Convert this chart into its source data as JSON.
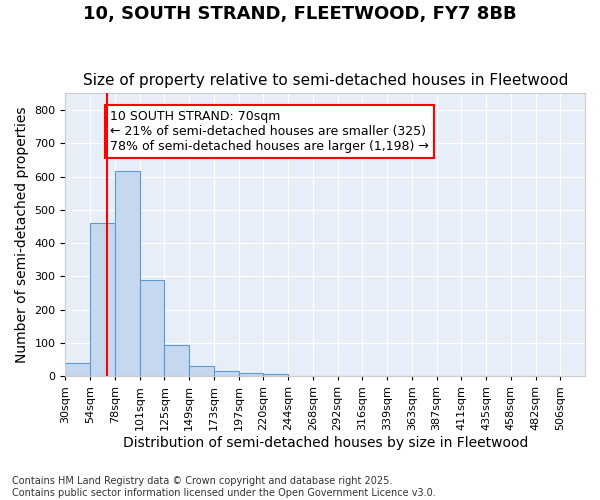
{
  "title": "10, SOUTH STRAND, FLEETWOOD, FY7 8BB",
  "subtitle": "Size of property relative to semi-detached houses in Fleetwood",
  "xlabel": "Distribution of semi-detached houses by size in Fleetwood",
  "ylabel": "Number of semi-detached properties",
  "bar_color": "#c5d8f0",
  "bar_edge_color": "#5b9bd5",
  "background_color": "#e8eef8",
  "grid_color": "#ffffff",
  "annotation_text": "10 SOUTH STRAND: 70sqm\n← 21% of semi-detached houses are smaller (325)\n78% of semi-detached houses are larger (1,198) →",
  "marker_bin_index": 1,
  "bin_labels": [
    "30sqm",
    "54sqm",
    "78sqm",
    "101sqm",
    "125sqm",
    "149sqm",
    "173sqm",
    "197sqm",
    "220sqm",
    "244sqm",
    "268sqm",
    "292sqm",
    "316sqm",
    "339sqm",
    "363sqm",
    "387sqm",
    "411sqm",
    "435sqm",
    "458sqm",
    "482sqm",
    "506sqm"
  ],
  "counts": [
    40,
    460,
    617,
    290,
    93,
    32,
    15,
    10,
    7,
    0,
    0,
    0,
    0,
    0,
    0,
    0,
    0,
    0,
    0,
    0
  ],
  "ylim": [
    0,
    850
  ],
  "yticks": [
    0,
    100,
    200,
    300,
    400,
    500,
    600,
    700,
    800
  ],
  "footnote": "Contains HM Land Registry data © Crown copyright and database right 2025.\nContains public sector information licensed under the Open Government Licence v3.0.",
  "title_fontsize": 13,
  "subtitle_fontsize": 11,
  "xlabel_fontsize": 10,
  "ylabel_fontsize": 10,
  "tick_fontsize": 8,
  "annotation_fontsize": 9,
  "footnote_fontsize": 7
}
